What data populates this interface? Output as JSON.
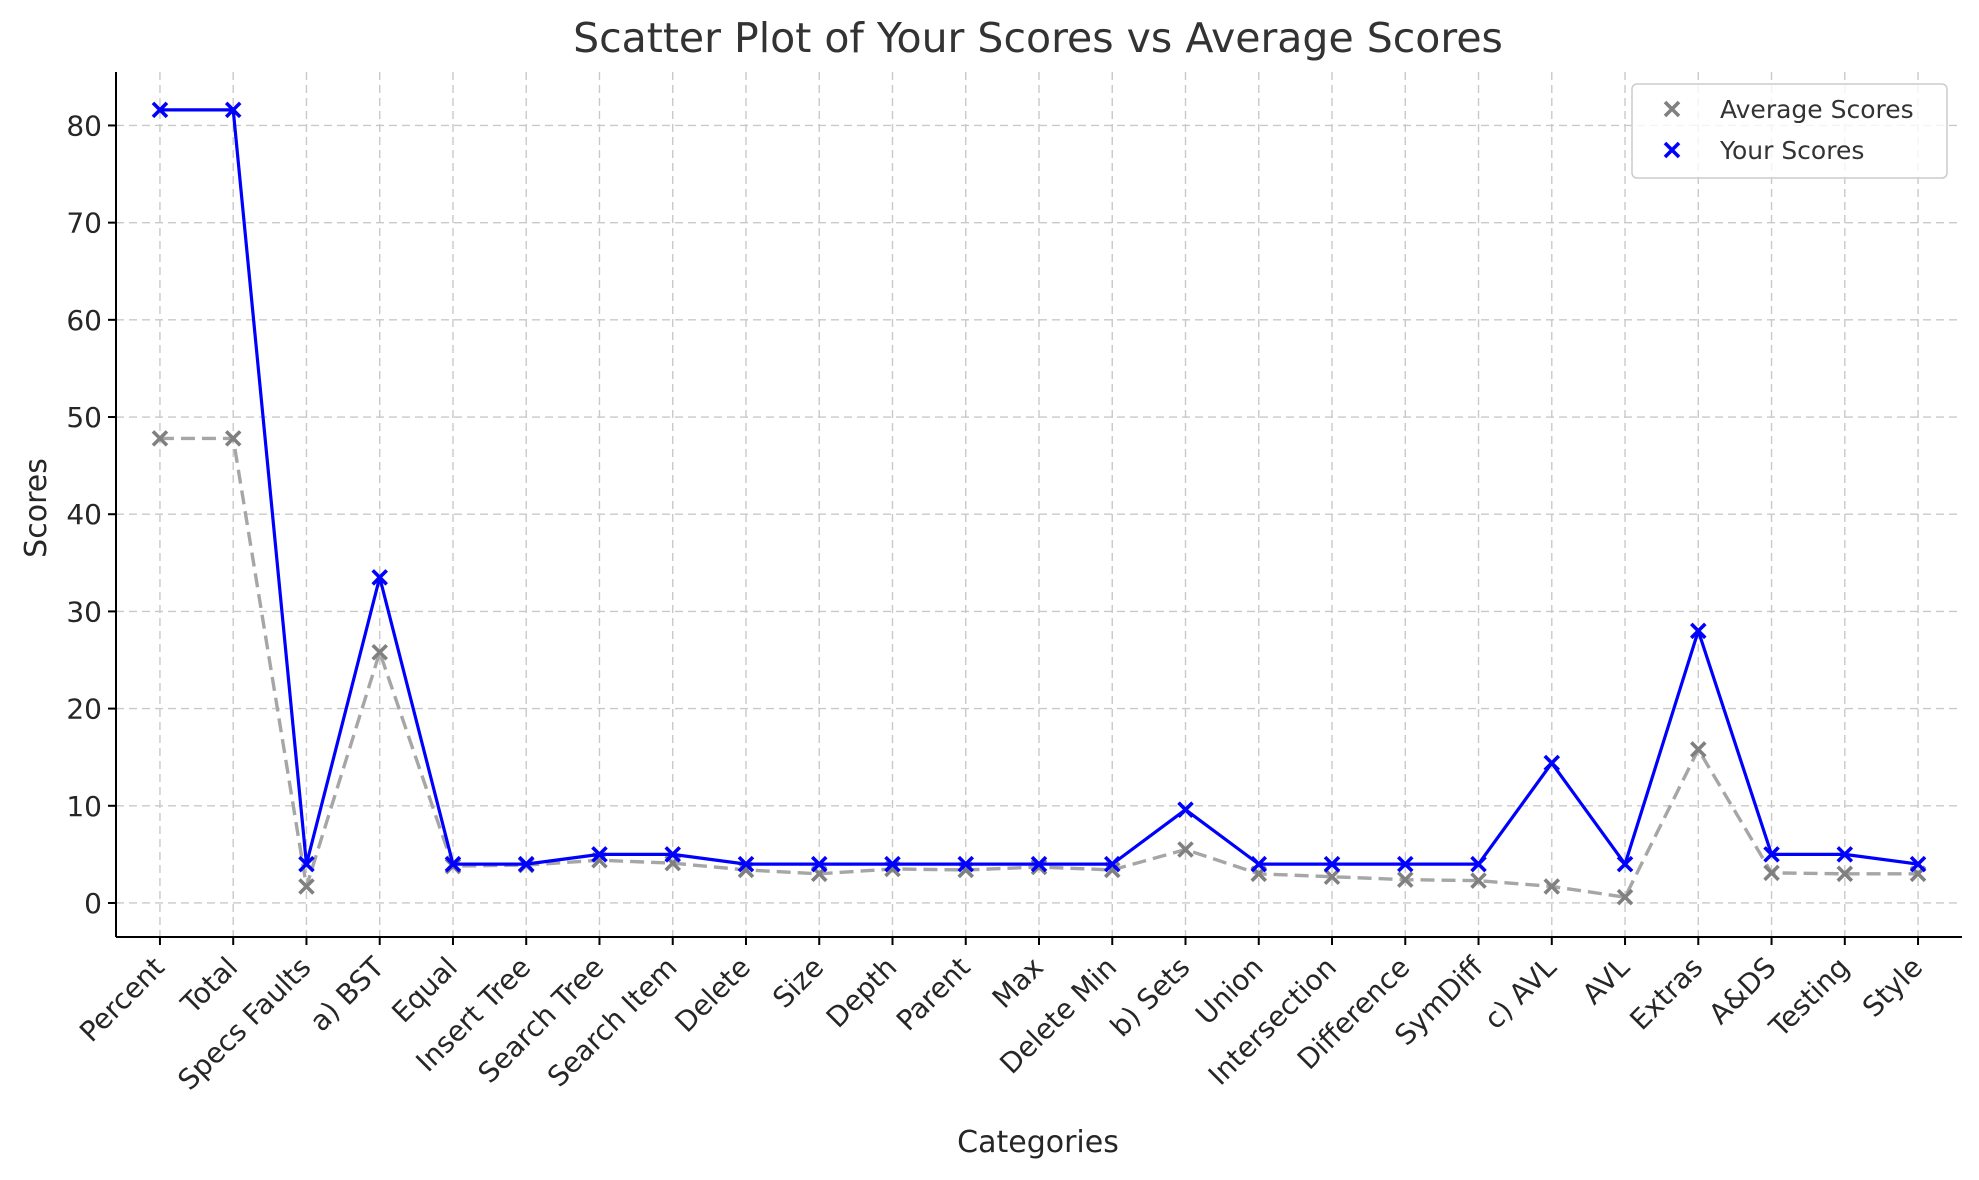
{
  "chart_data": {
    "type": "line",
    "title": "Scatter Plot of Your Scores vs Average Scores",
    "xlabel": "Categories",
    "ylabel": "Scores",
    "ylim": [
      -3.5,
      85.5
    ],
    "yticks": [
      0,
      10,
      20,
      30,
      40,
      50,
      60,
      70,
      80
    ],
    "grid": true,
    "legend_position": "top-right",
    "categories": [
      "Percent",
      "Total",
      "Specs Faults",
      "a) BST",
      "Equal",
      "Insert Tree",
      "Search Tree",
      "Search Item",
      "Delete",
      "Size",
      "Depth",
      "Parent",
      "Max",
      "Delete Min",
      "b) Sets",
      "Union",
      "Intersection",
      "Difference",
      "SymDiff",
      "c) AVL",
      "AVL",
      "Extras",
      "A&DS",
      "Testing",
      "Style"
    ],
    "series": [
      {
        "name": "Average Scores",
        "color": "#808080",
        "line_color": "#a6a6a6",
        "line_style": "dashed",
        "marker": "x",
        "values": [
          47.8,
          47.8,
          1.7,
          25.8,
          3.8,
          3.9,
          4.4,
          4.1,
          3.4,
          3.0,
          3.5,
          3.4,
          3.7,
          3.4,
          5.5,
          3.0,
          2.7,
          2.4,
          2.3,
          1.7,
          0.6,
          15.8,
          3.1,
          3.0,
          3.0
        ]
      },
      {
        "name": "Your Scores",
        "color": "#0000ff",
        "line_color": "#0000ff",
        "line_style": "solid",
        "marker": "x",
        "values": [
          81.6,
          81.6,
          4.0,
          33.5,
          4.0,
          4.0,
          5.0,
          5.0,
          4.0,
          4.0,
          4.0,
          4.0,
          4.0,
          4.0,
          9.6,
          4.0,
          4.0,
          4.0,
          4.0,
          14.4,
          4.0,
          28.0,
          5.0,
          5.0,
          4.0
        ]
      }
    ]
  }
}
